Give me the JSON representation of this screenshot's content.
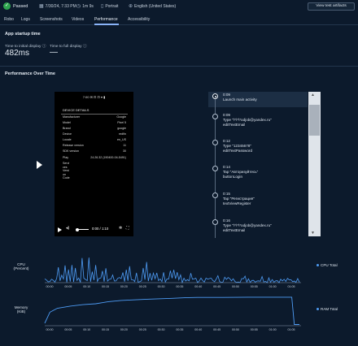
{
  "header": {
    "status": "Passed",
    "date": "7/30/24, 7:33 PM",
    "duration": "1m 9s",
    "orientation": "Portrait",
    "locale": "English (United States)",
    "view_button": "View test artifacts"
  },
  "tabs": [
    {
      "label": "Robo"
    },
    {
      "label": "Logs"
    },
    {
      "label": "Screenshots"
    },
    {
      "label": "Videos"
    },
    {
      "label": "Performance"
    },
    {
      "label": "Accessibility"
    }
  ],
  "startup": {
    "title": "App startup time",
    "initial_label": "Time to initial display",
    "initial_value": "482ms",
    "full_label": "Time to full display",
    "full_value": "—"
  },
  "perf_title": "Performance Over Time",
  "video": {
    "status_bar": "7:00 ✉ ⊡ ⊡     ▾ ▮",
    "device_header": "DEVICE DETAILS",
    "info": [
      {
        "k": "Manufacturer",
        "v": "Google"
      },
      {
        "k": "Model",
        "v": "Pixel 5"
      },
      {
        "k": "Brand",
        "v": "google"
      },
      {
        "k": "Device",
        "v": "redfin"
      },
      {
        "k": "Locale",
        "v": "en_US"
      },
      {
        "k": "Release version",
        "v": "11"
      },
      {
        "k": "SDK version",
        "v": "30"
      },
      {
        "k": "Play",
        "v": "24.26.32 (190400-04-5491)"
      }
    ],
    "extra_lines": [
      "Servi",
      "ces",
      "Versi",
      "on",
      "Code"
    ],
    "time": "0:00 / 1:10"
  },
  "timeline": [
    {
      "time": "0:09",
      "text": [
        "Launch main activity"
      ]
    },
    {
      "time": "0:09",
      "text": [
        "Type \"\\*\\*\\*odjob@yandex.ru\"",
        "editTextEmail"
      ]
    },
    {
      "time": "0:12",
      "text": [
        "Type \"12345678\"",
        "editTextPassword"
      ]
    },
    {
      "time": "0:14",
      "text": [
        "Tap \"Авторизуйтесь\"",
        "buttonLogin"
      ]
    },
    {
      "time": "0:15",
      "text": [
        "Tap \"Регистрация\"",
        "textViewRegister"
      ]
    },
    {
      "time": "0:16",
      "text": [
        "Type \"\\*\\*\\*odjob@yandex.ru\"",
        "editTextEmail"
      ]
    }
  ],
  "cpu_chart": {
    "ylabel_1": "CPU",
    "ylabel_2": "(Percent)",
    "legend": "CPU Total",
    "color": "#4e9cf5"
  },
  "mem_chart": {
    "ylabel_1": "Memory",
    "ylabel_2": "(KiB)",
    "legend": "RAM Total",
    "color": "#4e9cf5"
  },
  "x_ticks": [
    "00:00",
    "00:05",
    "00:10",
    "00:15",
    "00:20",
    "00:25",
    "00:30",
    "00:35",
    "00:40",
    "00:45",
    "00:50",
    "00:55",
    "01:00",
    "01:05"
  ]
}
